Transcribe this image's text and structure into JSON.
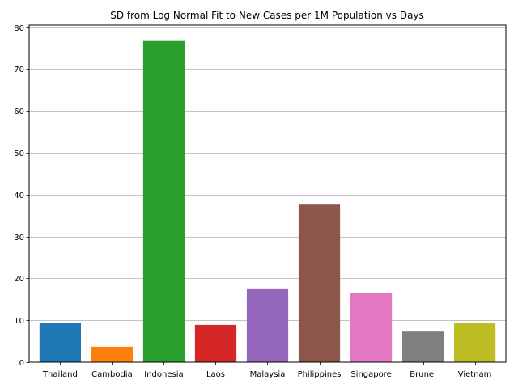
{
  "chart_data": {
    "type": "bar",
    "title": "SD from Log Normal Fit to New Cases per 1M Population vs Days",
    "xlabel": "",
    "ylabel": "",
    "categories": [
      "Thailand",
      "Cambodia",
      "Indonesia",
      "Laos",
      "Malaysia",
      "Philippines",
      "Singapore",
      "Brunei",
      "Vietnam"
    ],
    "values": [
      9.3,
      3.7,
      76.7,
      8.9,
      17.6,
      37.8,
      16.6,
      7.3,
      9.3
    ],
    "colors": [
      "#1f77b4",
      "#ff7f0e",
      "#2ca02c",
      "#d62728",
      "#9467bd",
      "#8c564b",
      "#e377c2",
      "#7f7f7f",
      "#bcbd22"
    ],
    "ylim": [
      0,
      80.5
    ],
    "yticks": [
      0,
      10,
      20,
      30,
      40,
      50,
      60,
      70,
      80
    ],
    "grid": "y",
    "legend": "none"
  }
}
